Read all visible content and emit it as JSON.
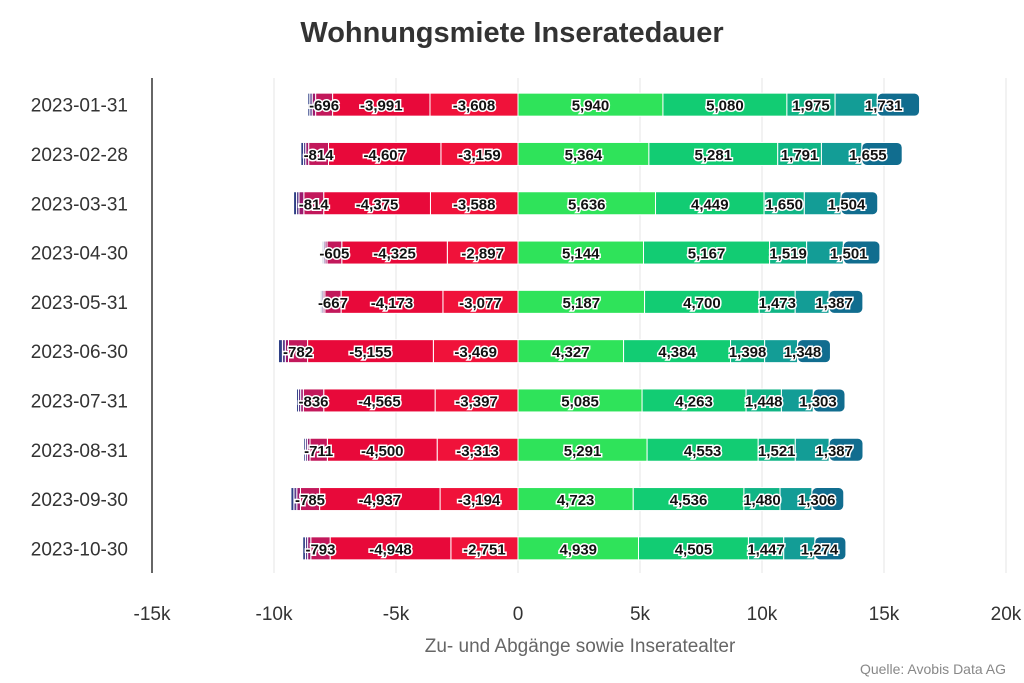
{
  "chart_data": {
    "type": "bar",
    "orientation": "horizontal",
    "stacked": true,
    "title": "Wohnungsmiete Inseratedauer",
    "xlabel": "Zu- und Abgänge sowie Inseratealter",
    "source": "Quelle: Avobis Data AG",
    "xlim": [
      -15000,
      20000
    ],
    "x_ticks": [
      -15000,
      -10000,
      -5000,
      0,
      5000,
      10000,
      15000,
      20000
    ],
    "x_tick_labels": [
      "-15k",
      "-10k",
      "-5k",
      "0",
      "5k",
      "10k",
      "15k",
      "20k"
    ],
    "grid": true,
    "categories": [
      "2023-01-31",
      "2023-02-28",
      "2023-03-31",
      "2023-04-30",
      "2023-05-31",
      "2023-06-30",
      "2023-07-31",
      "2023-08-31",
      "2023-09-30",
      "2023-10-30"
    ],
    "negative_series": [
      {
        "color": "#f0123a",
        "values": [
          -3608,
          -3159,
          -3588,
          -2897,
          -3077,
          -3469,
          -3397,
          -3313,
          -3194,
          -2751
        ]
      },
      {
        "color": "#e8093a",
        "values": [
          -3991,
          -4607,
          -4375,
          -4325,
          -4173,
          -5155,
          -4565,
          -4500,
          -4937,
          -4948
        ]
      },
      {
        "color": "#c2185b",
        "values": [
          -696,
          -814,
          -814,
          -605,
          -667,
          -782,
          -836,
          -711,
          -785,
          -793
        ]
      },
      {
        "color": "#9c1a6e",
        "values": [
          -140,
          -120,
          -200,
          -80,
          -70,
          -130,
          -110,
          -110,
          -150,
          -130
        ]
      },
      {
        "color": "#5c3e8c",
        "values": [
          -100,
          -90,
          -100,
          -60,
          -60,
          -120,
          -90,
          -80,
          -120,
          -90
        ]
      },
      {
        "color": "#2e3f85",
        "values": [
          -80,
          -110,
          -120,
          -50,
          -50,
          -160,
          -80,
          -70,
          -120,
          -110
        ]
      }
    ],
    "positive_series": [
      {
        "color": "#2fe35a",
        "values": [
          5940,
          5364,
          5636,
          5144,
          5187,
          4327,
          5085,
          5291,
          4723,
          4939
        ]
      },
      {
        "color": "#12cc73",
        "values": [
          5080,
          5281,
          4449,
          5167,
          4700,
          4384,
          4263,
          4553,
          4536,
          4505
        ]
      },
      {
        "color": "#10b585",
        "values": [
          1975,
          1791,
          1650,
          1519,
          1473,
          1398,
          1448,
          1521,
          1480,
          1447
        ]
      },
      {
        "color": "#139d96",
        "values": [
          1731,
          1655,
          1504,
          1501,
          1387,
          1348,
          1303,
          1387,
          1306,
          1274
        ]
      },
      {
        "color": "#116d8f",
        "values": [
          1731,
          1655,
          1504,
          1501,
          1387,
          1348,
          1303,
          1387,
          1306,
          1274
        ]
      }
    ],
    "labeled_values": [
      [
        -696,
        -3991,
        -3608,
        5940,
        5080,
        1975,
        1731
      ],
      [
        -814,
        -4607,
        -3159,
        5364,
        5281,
        1791,
        1655
      ],
      [
        -814,
        -4375,
        -3588,
        5636,
        4449,
        1650,
        1504
      ],
      [
        -605,
        -4325,
        -2897,
        5144,
        5167,
        1519,
        1501
      ],
      [
        -667,
        -4173,
        -3077,
        5187,
        4700,
        1473,
        1387
      ],
      [
        -782,
        -5155,
        -3469,
        4327,
        4384,
        1398,
        1348
      ],
      [
        -836,
        -4565,
        -3397,
        5085,
        4263,
        1448,
        1303
      ],
      [
        -711,
        -4500,
        -3313,
        5291,
        4553,
        1521,
        1387
      ],
      [
        -785,
        -4937,
        -3194,
        4723,
        4536,
        1480,
        1306
      ],
      [
        -793,
        -4948,
        -2751,
        4939,
        4505,
        1447,
        1274
      ]
    ],
    "labels": [
      [
        "-696",
        "-3,991",
        "-3,608",
        "5,940",
        "5,080",
        "1,975",
        "1,731"
      ],
      [
        "-814",
        "-4,607",
        "-3,159",
        "5,364",
        "5,281",
        "1,791",
        "1,655"
      ],
      [
        "-814",
        "-4,375",
        "-3,588",
        "5,636",
        "4,449",
        "1,650",
        "1,504"
      ],
      [
        "-605",
        "-4,325",
        "-2,897",
        "5,144",
        "5,167",
        "1,519",
        "1,501"
      ],
      [
        "-667",
        "-4,173",
        "-3,077",
        "5,187",
        "4,700",
        "1,473",
        "1,387"
      ],
      [
        "-782",
        "-5,155",
        "-3,469",
        "4,327",
        "4,384",
        "1,398",
        "1,348"
      ],
      [
        "-836",
        "-4,565",
        "-3,397",
        "5,085",
        "4,263",
        "1,448",
        "1,303"
      ],
      [
        "-711",
        "-4,500",
        "-3,313",
        "5,291",
        "4,553",
        "1,521",
        "1,387"
      ],
      [
        "-785",
        "-4,937",
        "-3,194",
        "4,723",
        "4,536",
        "1,480",
        "1,306"
      ],
      [
        "-793",
        "-4,948",
        "-2,751",
        "4,939",
        "4,505",
        "1,447",
        "1,274"
      ]
    ]
  }
}
